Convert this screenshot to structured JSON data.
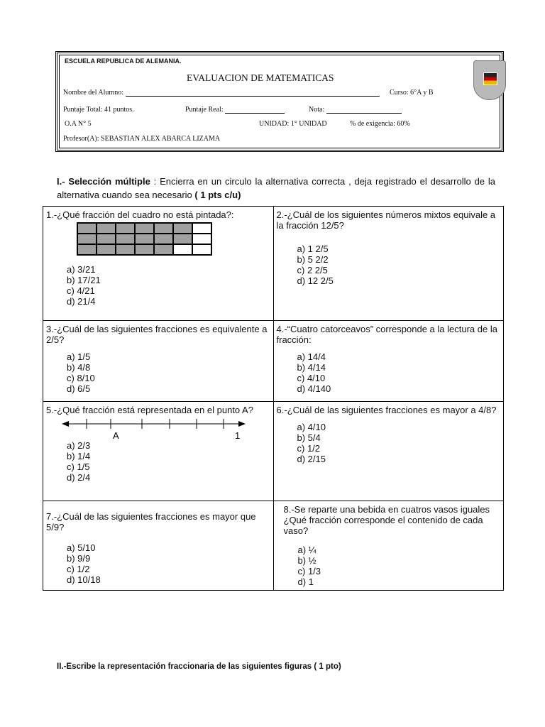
{
  "header": {
    "school": "ESCUELA REPUBLICA DE ALEMANIA.",
    "title": "EVALUACION DE  MATEMATICAS",
    "student_label": "Nombre del Alumno:",
    "course": "Curso:  6°A y B",
    "total": "Puntaje Total: 41 puntos.",
    "real_label": "Puntaje Real:",
    "grade_label": "Nota:",
    "oa": "O.A N° 5",
    "unit": "UNIDAD: 1° UNIDAD",
    "requirement": "% de exigencia: 60%",
    "teacher": "Profesor(A): SEBASTIAN ALEX ABARCA LIZAMA",
    "logo_text": "Escuela República de Alemania"
  },
  "section1": {
    "title": "I.- Selección múltiple",
    "text": " : Encierra en un circulo la alternativa correcta , deja registrado el desarrollo de la alternativa cuando sea necesario ",
    "points": "( 1 pts c/u)"
  },
  "questions": [
    {
      "q": "1.-¿Qué fracción del cuadro no está pintada?:",
      "options": [
        "a)  3/21",
        "b)  17/21",
        "c)  4/21",
        "d)  21/4"
      ],
      "grid_shaded": [
        6,
        6,
        5
      ]
    },
    {
      "q": "2.-¿Cuál de los siguientes números mixtos equivale a la fracción 12/5?",
      "options": [
        "a)  1  2/5",
        "b)  5  2/2",
        "c)  2  2/5",
        "d)  12  2/5"
      ]
    },
    {
      "q": "3.-¿Cuál de las siguientes fracciones es equivalente a 2/5?",
      "options": [
        "a)  1/5",
        "b)  4/8",
        "c)  8/10",
        "d)  6/5"
      ]
    },
    {
      "q": "4.-“Cuatro catorceavos” corresponde a la lectura de la fracción:",
      "options": [
        "a)  14/4",
        "b)  4/14",
        "c)  4/10",
        "d)  4/140"
      ]
    },
    {
      "q": "5.-¿Qué fracción está representada en el punto A?",
      "options": [
        "a)  2/3",
        "b)  1/4",
        "c)  1/5",
        "d)  2/4"
      ],
      "point_label": "A",
      "end_label": "1"
    },
    {
      "q": "6.-¿Cuál de las siguientes fracciones es mayor a 4/8?",
      "options": [
        "a)  4/10",
        "b)  5/4",
        "c)  1/2",
        "d)  2/15"
      ]
    },
    {
      "q": "7.-¿Cuál de las siguientes fracciones es mayor que 5/9?",
      "options": [
        "a)  5/10",
        "b)  9/9",
        "c)  1/2",
        "d)  10/18"
      ]
    },
    {
      "q": "8.-Se reparte una  bebida  en cuatros  vasos iguales ¿Qué  fracción  corresponde  el contenido de cada  vaso?",
      "options": [
        "a)  ¼",
        "b)  ½",
        "c)  1/3",
        "d)  1"
      ]
    }
  ],
  "section2": {
    "title": "II.-Escribe la representación fraccionaria de las siguientes figuras ( 1 pto)"
  }
}
